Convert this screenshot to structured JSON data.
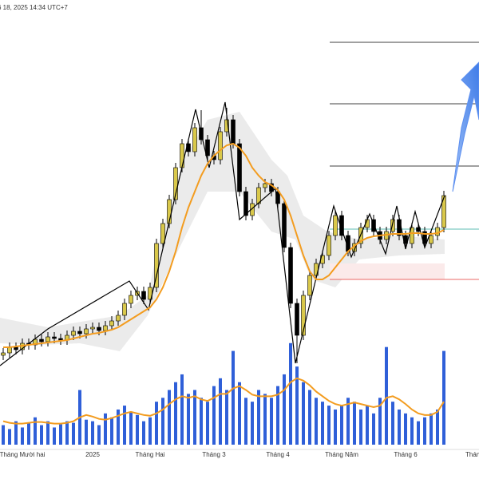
{
  "chart_data": {
    "type": "candlestick",
    "header": "6 18, 2025 14:34 UTC+7",
    "categories": [
      null,
      null,
      null,
      "Tháng Mười hai",
      null,
      null,
      null,
      null,
      null,
      null,
      null,
      null,
      null,
      null,
      "2025",
      null,
      null,
      null,
      null,
      null,
      null,
      null,
      null,
      "Tháng Hai",
      null,
      null,
      null,
      null,
      null,
      null,
      null,
      null,
      null,
      "Tháng 3",
      null,
      null,
      null,
      null,
      null,
      null,
      null,
      null,
      null,
      "Tháng 4",
      null,
      null,
      null,
      null,
      null,
      null,
      null,
      null,
      null,
      "Tháng Năm",
      null,
      null,
      null,
      null,
      null,
      null,
      null,
      null,
      null,
      "Tháng 6",
      null,
      null,
      null,
      null,
      null,
      null
    ],
    "next_label": "Tháng",
    "open": [
      115,
      118,
      125,
      122,
      130,
      128,
      135,
      132,
      138,
      136,
      134,
      140,
      145,
      142,
      148,
      150,
      146,
      152,
      158,
      165,
      180,
      190,
      195,
      185,
      200,
      255,
      280,
      310,
      350,
      380,
      370,
      400,
      385,
      365,
      360,
      395,
      410,
      380,
      320,
      290,
      305,
      325,
      330,
      320,
      305,
      250,
      180,
      140,
      190,
      215,
      230,
      240,
      265,
      290,
      265,
      245,
      255,
      275,
      285,
      270,
      260,
      270,
      285,
      265,
      255,
      275,
      270,
      255,
      265,
      275
    ],
    "high": [
      124,
      131,
      131,
      136,
      136,
      141,
      141,
      144,
      144,
      142,
      146,
      151,
      151,
      154,
      156,
      156,
      158,
      164,
      171,
      186,
      196,
      201,
      201,
      206,
      261,
      286,
      316,
      356,
      386,
      386,
      406,
      422,
      391,
      371,
      401,
      425,
      416,
      386,
      326,
      311,
      331,
      336,
      336,
      326,
      311,
      256,
      186,
      196,
      221,
      236,
      246,
      271,
      296,
      296,
      271,
      261,
      281,
      291,
      291,
      276,
      276,
      291,
      291,
      271,
      281,
      281,
      276,
      271,
      281,
      321
    ],
    "low": [
      109,
      112,
      116,
      116,
      122,
      122,
      126,
      126,
      130,
      128,
      128,
      134,
      136,
      136,
      142,
      140,
      140,
      146,
      152,
      159,
      174,
      184,
      179,
      179,
      194,
      249,
      274,
      304,
      344,
      364,
      364,
      379,
      359,
      354,
      354,
      389,
      374,
      314,
      284,
      284,
      299,
      319,
      314,
      299,
      244,
      174,
      105,
      134,
      184,
      209,
      224,
      234,
      259,
      259,
      239,
      239,
      249,
      269,
      264,
      254,
      254,
      264,
      259,
      249,
      249,
      264,
      249,
      249,
      259,
      269
    ],
    "close": [
      118,
      125,
      122,
      130,
      128,
      135,
      132,
      138,
      136,
      134,
      140,
      145,
      142,
      148,
      150,
      146,
      152,
      158,
      165,
      180,
      190,
      195,
      185,
      200,
      255,
      280,
      310,
      350,
      380,
      370,
      400,
      385,
      365,
      360,
      395,
      410,
      380,
      320,
      290,
      305,
      325,
      330,
      320,
      305,
      250,
      180,
      140,
      190,
      215,
      230,
      240,
      265,
      290,
      265,
      245,
      255,
      275,
      285,
      270,
      260,
      270,
      285,
      265,
      255,
      275,
      270,
      255,
      265,
      275,
      315
    ],
    "ma": [
      125,
      125,
      126,
      127,
      128,
      129,
      130,
      131,
      132,
      133,
      134,
      136,
      138,
      140,
      142,
      143,
      145,
      147,
      150,
      155,
      160,
      165,
      170,
      175,
      185,
      200,
      220,
      245,
      275,
      300,
      320,
      340,
      355,
      365,
      372,
      378,
      380,
      375,
      365,
      350,
      340,
      332,
      328,
      322,
      310,
      290,
      265,
      240,
      220,
      210,
      210,
      215,
      225,
      235,
      245,
      252,
      258,
      262,
      264,
      265,
      266,
      267,
      267,
      267,
      268,
      268,
      267,
      267,
      268,
      272
    ],
    "volume": [
      25,
      20,
      30,
      22,
      28,
      35,
      25,
      30,
      22,
      26,
      30,
      28,
      70,
      32,
      30,
      25,
      40,
      35,
      45,
      50,
      42,
      38,
      30,
      35,
      55,
      60,
      70,
      80,
      90,
      65,
      70,
      60,
      55,
      75,
      85,
      70,
      120,
      80,
      60,
      55,
      70,
      65,
      60,
      75,
      90,
      130,
      100,
      80,
      70,
      60,
      55,
      50,
      45,
      50,
      60,
      55,
      45,
      50,
      40,
      60,
      125,
      55,
      45,
      40,
      35,
      30,
      35,
      40,
      45,
      120
    ],
    "volume_ma": [
      30,
      28,
      27,
      27,
      28,
      29,
      29,
      28,
      27,
      27,
      28,
      30,
      35,
      38,
      36,
      33,
      32,
      34,
      37,
      40,
      42,
      40,
      38,
      37,
      40,
      45,
      52,
      58,
      62,
      60,
      62,
      58,
      56,
      60,
      65,
      65,
      72,
      75,
      70,
      64,
      62,
      62,
      62,
      64,
      70,
      80,
      85,
      82,
      76,
      68,
      62,
      56,
      52,
      50,
      52,
      54,
      52,
      50,
      48,
      50,
      60,
      62,
      58,
      52,
      45,
      40,
      38,
      38,
      42,
      55
    ],
    "levels": [
      507,
      430,
      352,
      273,
      210
    ],
    "level_colors": [
      "#000000",
      "#000000",
      "#000000",
      "#26a69a",
      "#e53935"
    ],
    "up_color": "#d9c84a",
    "down_color": "#000000",
    "ma_color": "#f39c1f",
    "volume_color": "#2f5fd8",
    "ylim": [
      0,
      560
    ],
    "vlim": [
      0,
      140
    ]
  }
}
